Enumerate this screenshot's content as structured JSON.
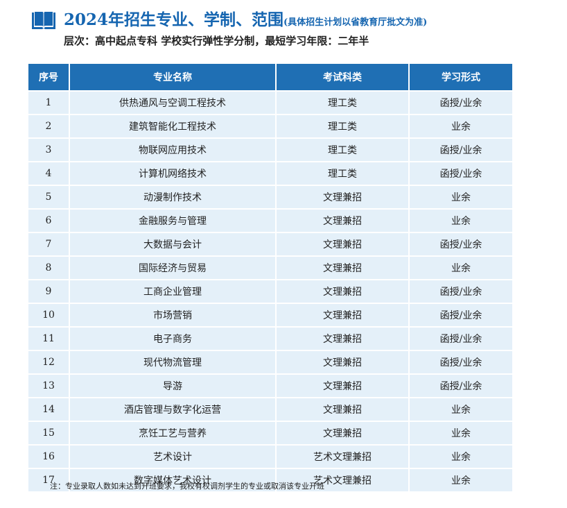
{
  "header": {
    "title": "2024年招生专业、学制、范围",
    "title_note": "(具体招生计划以省教育厅批文为准)",
    "subtitle": "层次：高中起点专科   学校实行弹性学分制，最短学习年限：二年半",
    "icon": "book-icon"
  },
  "table": {
    "columns": [
      "序号",
      "专业名称",
      "考试科类",
      "学习形式"
    ],
    "rows": [
      [
        "1",
        "供热通风与空调工程技术",
        "理工类",
        "函授/业余"
      ],
      [
        "2",
        "建筑智能化工程技术",
        "理工类",
        "业余"
      ],
      [
        "3",
        "物联网应用技术",
        "理工类",
        "函授/业余"
      ],
      [
        "4",
        "计算机网络技术",
        "理工类",
        "函授/业余"
      ],
      [
        "5",
        "动漫制作技术",
        "文理兼招",
        "业余"
      ],
      [
        "6",
        "金融服务与管理",
        "文理兼招",
        "业余"
      ],
      [
        "7",
        "大数据与会计",
        "文理兼招",
        "函授/业余"
      ],
      [
        "8",
        "国际经济与贸易",
        "文理兼招",
        "业余"
      ],
      [
        "9",
        "工商企业管理",
        "文理兼招",
        "函授/业余"
      ],
      [
        "10",
        "市场营销",
        "文理兼招",
        "函授/业余"
      ],
      [
        "11",
        "电子商务",
        "文理兼招",
        "函授/业余"
      ],
      [
        "12",
        "现代物流管理",
        "文理兼招",
        "函授/业余"
      ],
      [
        "13",
        "导游",
        "文理兼招",
        "函授/业余"
      ],
      [
        "14",
        "酒店管理与数字化运营",
        "文理兼招",
        "业余"
      ],
      [
        "15",
        "烹饪工艺与营养",
        "文理兼招",
        "业余"
      ],
      [
        "16",
        "艺术设计",
        "艺术文理兼招",
        "业余"
      ],
      [
        "17",
        "数字媒体艺术设计",
        "艺术文理兼招",
        "业余"
      ]
    ]
  },
  "footnote": "注：专业录取人数如未达到开班要求，我校有权调剂学生的专业或取消该专业开班",
  "colors": {
    "accent": "#1565b0",
    "header_bg": "#1f6fb4",
    "row_bg": "#e4f0f9"
  }
}
